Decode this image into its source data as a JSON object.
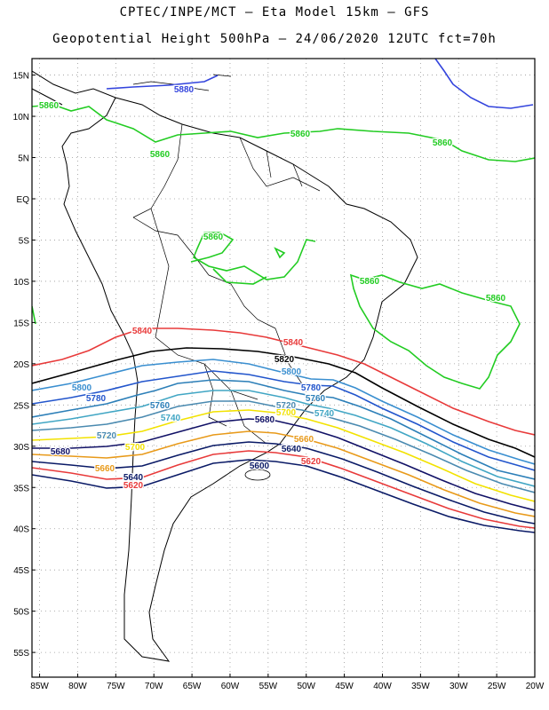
{
  "header": {
    "title_line1": "CPTEC/INPE/MCT –  Eta Model 15km – GFS",
    "title_line2": "Geopotential Height 500hPa – 24/06/2020 12UTC fct=70h"
  },
  "axes": {
    "lat_labels": [
      "15N",
      "10N",
      "5N",
      "EQ",
      "5S",
      "10S",
      "15S",
      "20S",
      "25S",
      "30S",
      "35S",
      "40S",
      "45S",
      "50S",
      "55S"
    ],
    "lon_labels": [
      "85W",
      "80W",
      "75W",
      "70W",
      "65W",
      "60W",
      "55W",
      "50W",
      "45W",
      "40W",
      "35W",
      "30W",
      "25W",
      "20W"
    ]
  },
  "chart_data": {
    "type": "contour",
    "variable": "Geopotential Height 500hPa",
    "units": "gpm",
    "lon_range": [
      -86,
      -20
    ],
    "lat_range": [
      -58,
      17
    ],
    "contours": [
      {
        "level": 5860,
        "color": "#22cc22",
        "labels": [
          "5860",
          "5860",
          "5860",
          "5860",
          "5860",
          "5860",
          "5860"
        ]
      },
      {
        "level": 5880,
        "color": "#3344dd",
        "labels": [
          "5880"
        ]
      },
      {
        "level": 5840,
        "color": "#e83a3a",
        "labels": [
          "5840",
          "5840"
        ]
      },
      {
        "level": 5820,
        "color": "#000000",
        "labels": [
          "5820"
        ]
      },
      {
        "level": 5800,
        "color": "#3a8fd0",
        "labels": [
          "5800",
          "5800"
        ]
      },
      {
        "level": 5780,
        "color": "#2255cc",
        "labels": [
          "5780",
          "5780"
        ]
      },
      {
        "level": 5760,
        "color": "#2c7fb8",
        "labels": [
          "5760",
          "5760"
        ]
      },
      {
        "level": 5740,
        "color": "#41a6c4",
        "labels": [
          "5740",
          "5740"
        ]
      },
      {
        "level": 5720,
        "color": "#4a8ab0",
        "labels": [
          "5720",
          "5720"
        ]
      },
      {
        "level": 5700,
        "color": "#f2e200",
        "labels": [
          "5700",
          "5700"
        ]
      },
      {
        "level": 5680,
        "color": "#111166",
        "labels": [
          "5680",
          "5680"
        ]
      },
      {
        "level": 5660,
        "color": "#e89a1a",
        "labels": [
          "5660",
          "5660"
        ]
      },
      {
        "level": 5640,
        "color": "#0a1a66",
        "labels": [
          "5640",
          "5640"
        ]
      },
      {
        "level": 5620,
        "color": "#e83a3a",
        "labels": [
          "5620",
          "5620"
        ]
      },
      {
        "level": 5600,
        "color": "#0a1a66",
        "labels": [
          "5600"
        ]
      }
    ]
  }
}
